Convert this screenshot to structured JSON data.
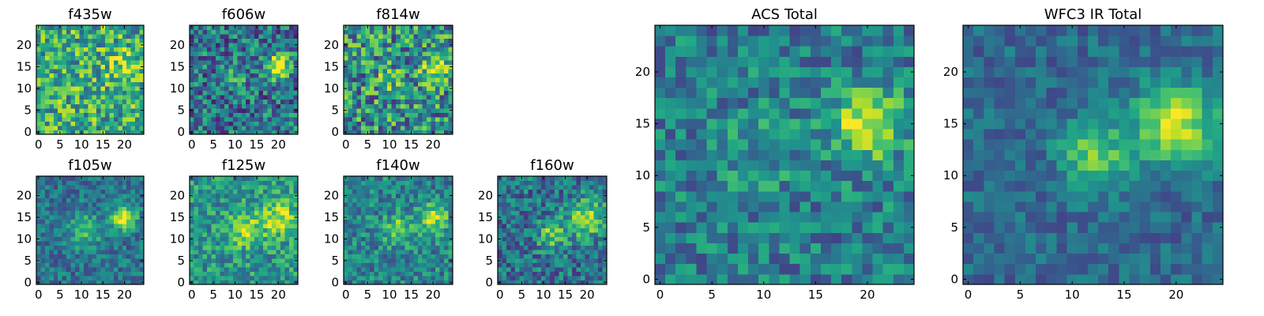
{
  "chart_data": [
    {
      "type": "heatmap",
      "title": "f435w",
      "x_ticks": [
        "0",
        "5",
        "10",
        "15",
        "20"
      ],
      "y_ticks": [
        "0",
        "5",
        "10",
        "15",
        "20"
      ],
      "xlim": [
        -0.5,
        24.5
      ],
      "ylim": [
        -0.5,
        24.5
      ],
      "grid_size": 25,
      "blobs": [
        [
          20,
          15,
          2.5,
          0.28
        ]
      ],
      "base": 0.62,
      "noise": 0.32,
      "seed": 3
    },
    {
      "type": "heatmap",
      "title": "f606w",
      "x_ticks": [
        "0",
        "5",
        "10",
        "15",
        "20"
      ],
      "y_ticks": [
        "0",
        "5",
        "10",
        "15",
        "20"
      ],
      "xlim": [
        -0.5,
        24.5
      ],
      "ylim": [
        -0.5,
        24.5
      ],
      "grid_size": 25,
      "blobs": [
        [
          20,
          15,
          2.0,
          0.65
        ],
        [
          10,
          12,
          2.2,
          0.2
        ]
      ],
      "base": 0.38,
      "noise": 0.3,
      "seed": 7
    },
    {
      "type": "heatmap",
      "title": "f814w",
      "x_ticks": [
        "0",
        "5",
        "10",
        "15",
        "20"
      ],
      "y_ticks": [
        "0",
        "5",
        "10",
        "15",
        "20"
      ],
      "xlim": [
        -0.5,
        24.5
      ],
      "ylim": [
        -0.5,
        24.5
      ],
      "grid_size": 25,
      "blobs": [
        [
          20,
          15,
          2.0,
          0.45
        ],
        [
          10,
          12,
          2.2,
          0.15
        ]
      ],
      "base": 0.5,
      "noise": 0.36,
      "seed": 11
    },
    {
      "type": "heatmap",
      "title": "f105w",
      "x_ticks": [
        "0",
        "5",
        "10",
        "15",
        "20"
      ],
      "y_ticks": [
        "0",
        "5",
        "10",
        "15",
        "20"
      ],
      "xlim": [
        -0.5,
        24.5
      ],
      "ylim": [
        -0.5,
        24.5
      ],
      "grid_size": 25,
      "blobs": [
        [
          20,
          15,
          2.0,
          0.6
        ],
        [
          11,
          12,
          2.6,
          0.35
        ]
      ],
      "base": 0.38,
      "noise": 0.18,
      "seed": 13
    },
    {
      "type": "heatmap",
      "title": "f125w",
      "x_ticks": [
        "0",
        "5",
        "10",
        "15",
        "20"
      ],
      "y_ticks": [
        "0",
        "5",
        "10",
        "15",
        "20"
      ],
      "xlim": [
        -0.5,
        24.5
      ],
      "ylim": [
        -0.5,
        24.5
      ],
      "grid_size": 25,
      "blobs": [
        [
          20,
          15,
          3.0,
          0.35
        ],
        [
          12,
          12,
          3.0,
          0.3
        ]
      ],
      "base": 0.52,
      "noise": 0.22,
      "seed": 17
    },
    {
      "type": "heatmap",
      "title": "f140w",
      "x_ticks": [
        "0",
        "5",
        "10",
        "15",
        "20"
      ],
      "y_ticks": [
        "0",
        "5",
        "10",
        "15",
        "20"
      ],
      "xlim": [
        -0.5,
        24.5
      ],
      "ylim": [
        -0.5,
        24.5
      ],
      "grid_size": 25,
      "blobs": [
        [
          20,
          15,
          2.3,
          0.45
        ],
        [
          12,
          12,
          2.3,
          0.35
        ]
      ],
      "base": 0.45,
      "noise": 0.22,
      "seed": 19
    },
    {
      "type": "heatmap",
      "title": "f160w",
      "x_ticks": [
        "0",
        "5",
        "10",
        "15",
        "20"
      ],
      "y_ticks": [
        "0",
        "5",
        "10",
        "15",
        "20"
      ],
      "xlim": [
        -0.5,
        24.5
      ],
      "ylim": [
        -0.5,
        24.5
      ],
      "grid_size": 25,
      "blobs": [
        [
          20,
          15,
          3.0,
          0.5
        ],
        [
          12,
          11,
          2.3,
          0.4
        ]
      ],
      "base": 0.38,
      "noise": 0.24,
      "seed": 23
    },
    {
      "type": "heatmap",
      "title": "ACS Total",
      "x_ticks": [
        "0",
        "5",
        "10",
        "15",
        "20"
      ],
      "y_ticks": [
        "0",
        "5",
        "10",
        "15",
        "20"
      ],
      "xlim": [
        -0.5,
        24.5
      ],
      "ylim": [
        -0.5,
        24.5
      ],
      "grid_size": 25,
      "blobs": [
        [
          20,
          15,
          2.4,
          0.55
        ],
        [
          10,
          12,
          3.0,
          0.12
        ]
      ],
      "base": 0.42,
      "noise": 0.22,
      "seed": 29
    },
    {
      "type": "heatmap",
      "title": "WFC3 IR Total",
      "x_ticks": [
        "0",
        "5",
        "10",
        "15",
        "20"
      ],
      "y_ticks": [
        "0",
        "5",
        "10",
        "15",
        "20"
      ],
      "xlim": [
        -0.5,
        24.5
      ],
      "ylim": [
        -0.5,
        24.5
      ],
      "grid_size": 25,
      "blobs": [
        [
          20,
          15,
          2.8,
          0.6
        ],
        [
          12,
          12,
          2.2,
          0.45
        ]
      ],
      "base": 0.34,
      "noise": 0.14,
      "seed": 31
    }
  ]
}
